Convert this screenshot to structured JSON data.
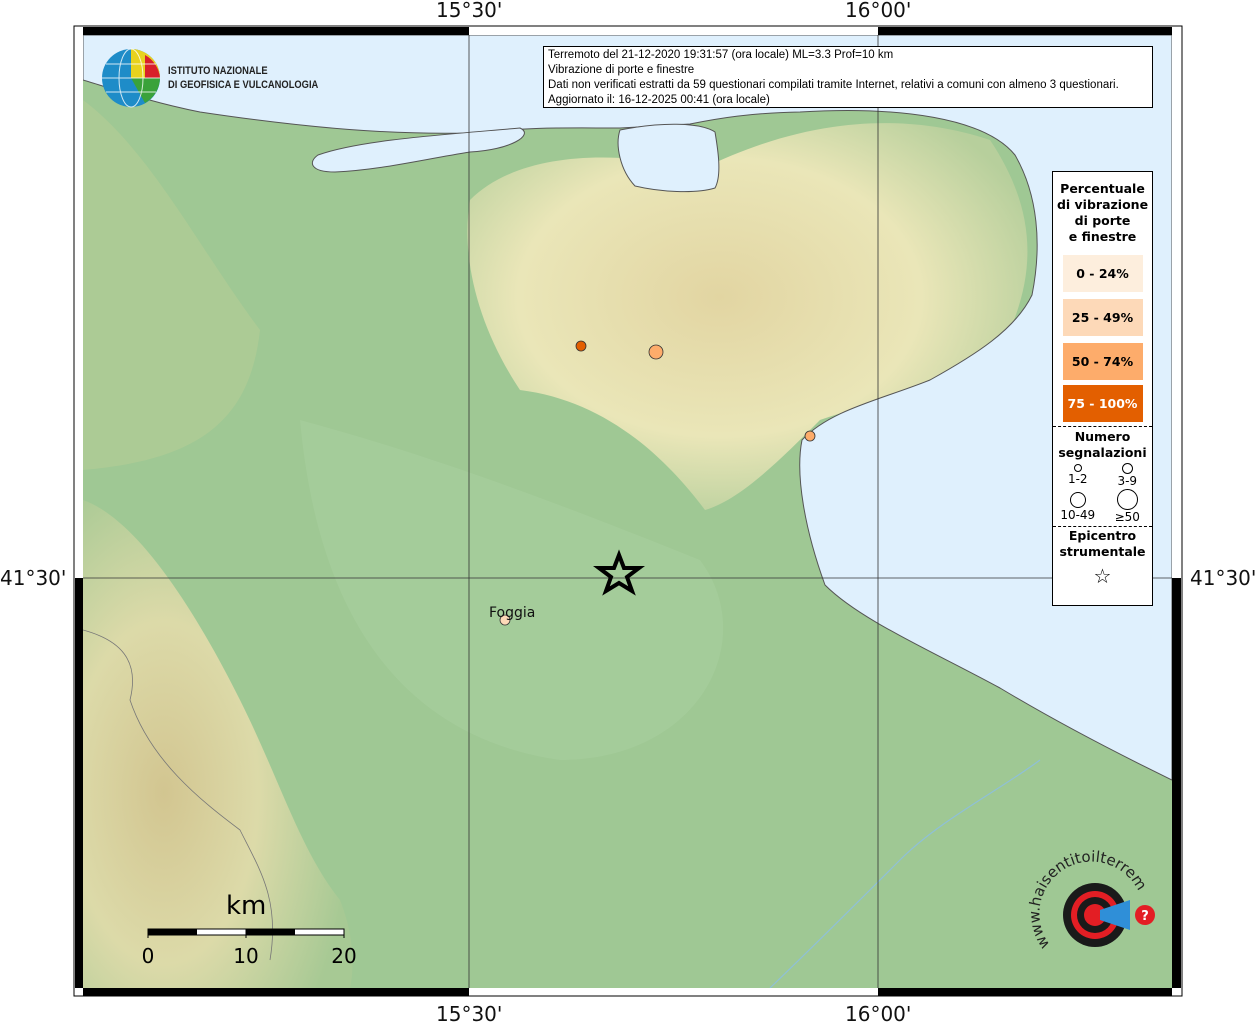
{
  "map": {
    "grid_ticks": {
      "lon_labels": [
        "15°30'",
        "16°00'"
      ],
      "lat_labels": [
        "41°30'"
      ]
    },
    "colors": {
      "land": "#9fc894",
      "sea": "#dff0fd",
      "highland": "#e8e0b0"
    },
    "points": [
      {
        "name": "",
        "class": "75 - 100%",
        "count_class": "1-2",
        "color": "#e35f00"
      },
      {
        "name": "",
        "class": "50 - 74%",
        "count_class": "3-9",
        "color": "#fdac6b"
      },
      {
        "name": "",
        "class": "50 - 74%",
        "count_class": "1-2",
        "color": "#fdac6b"
      },
      {
        "name": "Foggia",
        "class": "25 - 49%",
        "count_class": "1-2",
        "color": "#fdd9b8"
      }
    ],
    "epicenter": {
      "icon": "star-icon"
    },
    "city_label": "Foggia",
    "scale_bar": {
      "unit": "km",
      "labels": [
        "0",
        "10",
        "20"
      ]
    }
  },
  "info": {
    "line1": "Terremoto del 21-12-2020 19:31:57 (ora locale) ML=3.3 Prof=10 km",
    "line2": "Vibrazione di porte e finestre",
    "line3": "Dati non verificati estratti da 59 questionari compilati tramite Internet, relativi a comuni con almeno 3 questionari.",
    "line4": "Aggiornato il: 16-12-2025 00:41 (ora locale)"
  },
  "legend": {
    "title": [
      "Percentuale",
      "di vibrazione",
      "di porte",
      "e finestre"
    ],
    "classes": [
      {
        "label": "0 - 24%",
        "color": "#fdeedd",
        "text_color": "#000"
      },
      {
        "label": "25 - 49%",
        "color": "#fdd9b8",
        "text_color": "#000"
      },
      {
        "label": "50 - 74%",
        "color": "#fdac6b",
        "text_color": "#000"
      },
      {
        "label": "75 - 100%",
        "color": "#e35f00",
        "text_color": "#fff"
      }
    ],
    "count_title": [
      "Numero",
      "segnalazioni"
    ],
    "count_classes": [
      "1-2",
      "3-9",
      "10-49",
      "≥50"
    ],
    "epicenter_title": [
      "Epicentro",
      "strumentale"
    ]
  },
  "logos": {
    "ingv": [
      "ISTITUTO NAZIONALE",
      "DI GEOFISICA E VULCANOLOGIA"
    ],
    "hsit": "www.haisentitoilterremoto.it"
  }
}
